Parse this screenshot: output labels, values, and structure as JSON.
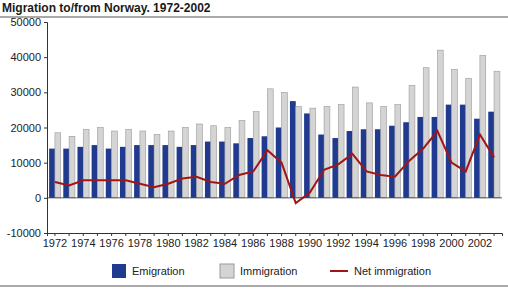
{
  "chart_data": {
    "type": "bar",
    "title": "Migration to/from Norway. 1972-2002",
    "categories": [
      "1972",
      null,
      "1974",
      null,
      "1976",
      null,
      "1978",
      null,
      "1980",
      null,
      "1982",
      null,
      "1984",
      null,
      "1986",
      null,
      "1988",
      null,
      "1990",
      null,
      "1992",
      null,
      "1994",
      null,
      "1996",
      null,
      "1998",
      null,
      "2000",
      null,
      "2002",
      null
    ],
    "series": [
      {
        "name": "Emigration",
        "type": "bar",
        "color": "#1f3a8f",
        "values": [
          14000,
          14000,
          14500,
          15000,
          14000,
          14500,
          15000,
          15000,
          15000,
          14500,
          15000,
          16000,
          16000,
          15500,
          17000,
          17500,
          20000,
          27500,
          24000,
          18000,
          17000,
          19000,
          19500,
          19500,
          20500,
          21500,
          23000,
          23000,
          26500,
          26500,
          22500,
          24500
        ]
      },
      {
        "name": "Immigration",
        "type": "bar",
        "color": "#d4d4d4",
        "values": [
          18500,
          17500,
          19500,
          20000,
          19000,
          19500,
          19000,
          18000,
          19000,
          20000,
          21000,
          20500,
          20000,
          22000,
          24500,
          31000,
          30000,
          26000,
          25500,
          26000,
          26500,
          31500,
          27000,
          26000,
          26500,
          32000,
          37000,
          42000,
          36500,
          34000,
          40500,
          36000
        ]
      },
      {
        "name": "Net immigration",
        "type": "line",
        "color": "#a31515",
        "values": [
          4500,
          3500,
          5000,
          5000,
          5000,
          5000,
          4000,
          3000,
          4000,
          5500,
          6000,
          4500,
          4000,
          6500,
          7500,
          13500,
          10000,
          -1500,
          1500,
          8000,
          9500,
          12500,
          7500,
          6500,
          6000,
          10500,
          14000,
          19000,
          10000,
          7500,
          18000,
          11500
        ]
      }
    ],
    "ylim": [
      -10000,
      50000
    ],
    "yticks": [
      -10000,
      0,
      10000,
      20000,
      30000,
      40000,
      50000
    ],
    "grid": false,
    "legend": "bottom"
  }
}
